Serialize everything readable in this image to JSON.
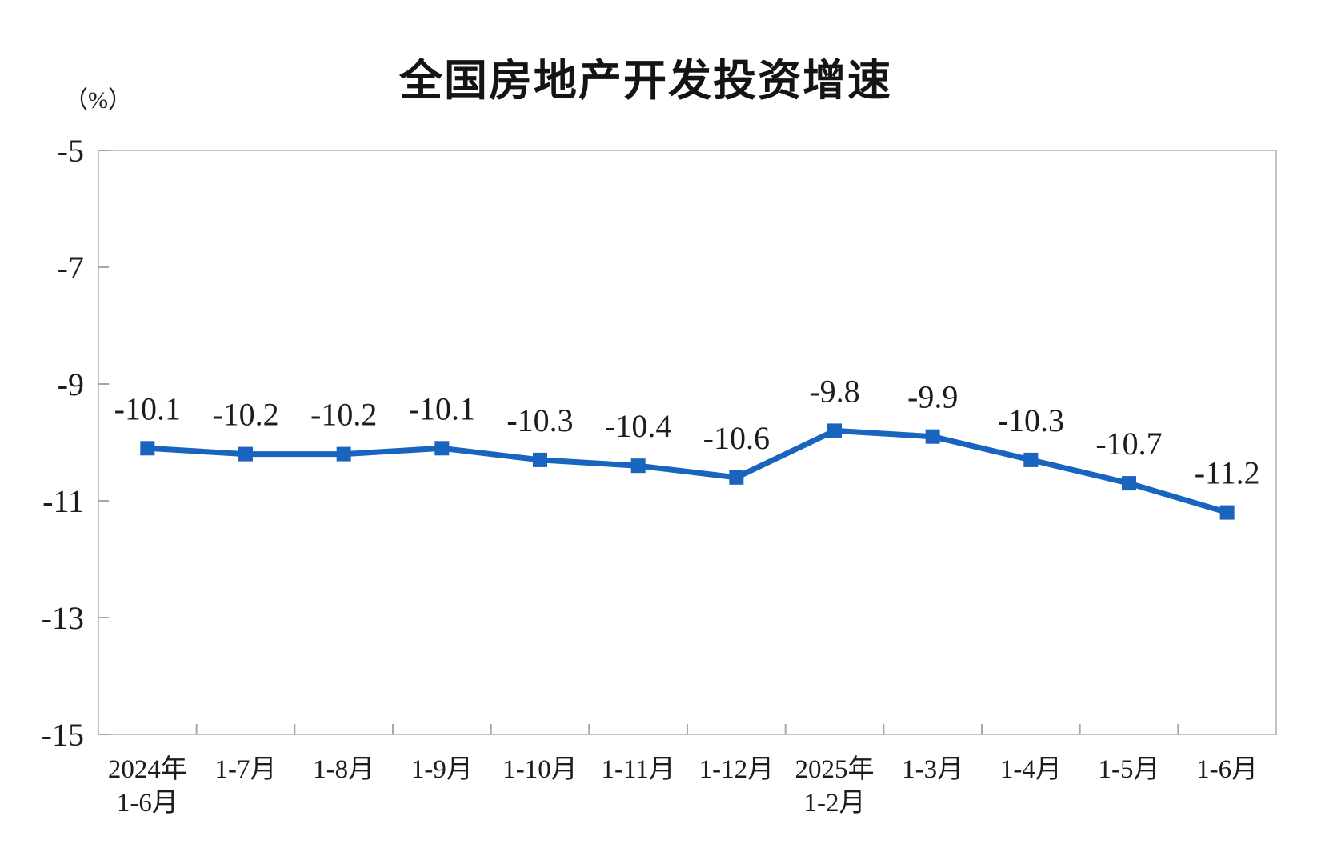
{
  "chart_data": {
    "type": "line",
    "title": "全国房地产开发投资增速",
    "unit_label": "（%）",
    "categories": [
      [
        "2024年",
        "1-6月"
      ],
      [
        "1-7月"
      ],
      [
        "1-8月"
      ],
      [
        "1-9月"
      ],
      [
        "1-10月"
      ],
      [
        "1-11月"
      ],
      [
        "1-12月"
      ],
      [
        "2025年",
        "1-2月"
      ],
      [
        "1-3月"
      ],
      [
        "1-4月"
      ],
      [
        "1-5月"
      ],
      [
        "1-6月"
      ]
    ],
    "values": [
      -10.1,
      -10.2,
      -10.2,
      -10.1,
      -10.3,
      -10.4,
      -10.6,
      -9.8,
      -9.9,
      -10.3,
      -10.7,
      -11.2
    ],
    "data_labels": [
      "-10.1",
      "-10.2",
      "-10.2",
      "-10.1",
      "-10.3",
      "-10.4",
      "-10.6",
      "-9.8",
      "-9.9",
      "-10.3",
      "-10.7",
      "-11.2"
    ],
    "ylim": [
      -15,
      -5
    ],
    "ytick_labels": [
      "-5",
      "-7",
      "-9",
      "-11",
      "-13",
      "-15"
    ],
    "ytick_values": [
      -5,
      -7,
      -9,
      -11,
      -13,
      -15
    ],
    "xlabel": "",
    "ylabel": "（%）",
    "grid": false,
    "legend": "none",
    "marker": "square",
    "colors": {
      "line": "#1964be",
      "marker": "#1964be",
      "border": "#c2c2c2",
      "tick": "#a6a6a6",
      "text": "#1c1c1c"
    }
  }
}
